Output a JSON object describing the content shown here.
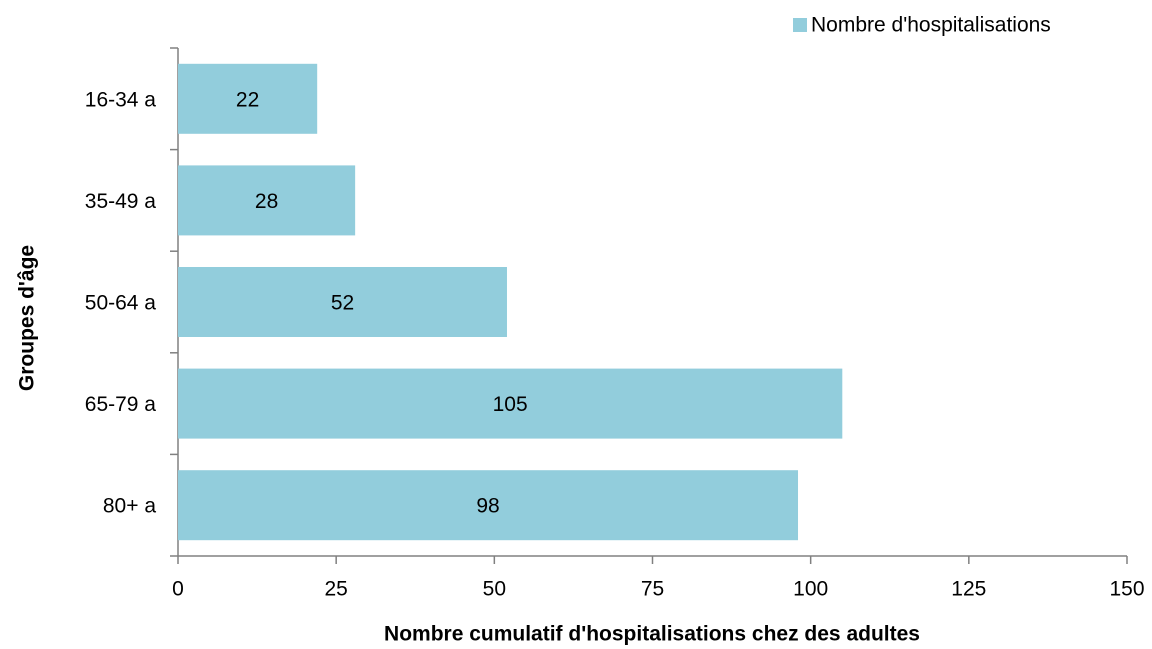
{
  "chart_data": {
    "type": "bar",
    "orientation": "horizontal",
    "categories": [
      "16-34 a",
      "35-49 a",
      "50-64 a",
      "65-79 a",
      "80+ a"
    ],
    "series": [
      {
        "name": "Nombre d'hospitalisations",
        "color": "#92cddc",
        "values": [
          22,
          28,
          52,
          105,
          98
        ]
      }
    ],
    "x_label": "Nombre cumulatif d'hospitalisations  chez des adultes",
    "y_label": "Groupes d'âge",
    "xlim": [
      0,
      150
    ],
    "xticks": [
      0,
      25,
      50,
      75,
      100,
      125,
      150
    ],
    "legend": "top-right",
    "grid": false
  }
}
